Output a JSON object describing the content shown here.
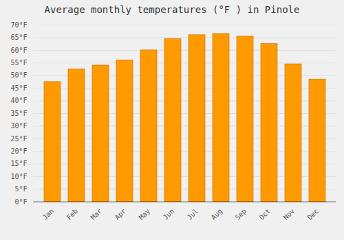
{
  "chart_data": {
    "type": "bar",
    "title": "Average monthly temperatures (°F ) in Pinole",
    "categories": [
      "Jan",
      "Feb",
      "Mar",
      "Apr",
      "May",
      "Jun",
      "Jul",
      "Aug",
      "Sep",
      "Oct",
      "Nov",
      "Dec"
    ],
    "values": [
      47.5,
      52.5,
      54,
      56,
      60,
      64.5,
      66,
      66.5,
      65.5,
      62.5,
      54.5,
      48.5
    ],
    "color": "#FF9900",
    "ylim": [
      0,
      70
    ],
    "yticks": [
      {
        "value": 0,
        "label": "0°F"
      },
      {
        "value": 5,
        "label": "5°F"
      },
      {
        "value": 10,
        "label": "10°F"
      },
      {
        "value": 15,
        "label": "15°F"
      },
      {
        "value": 20,
        "label": "20°F"
      },
      {
        "value": 25,
        "label": "25°F"
      },
      {
        "value": 30,
        "label": "30°F"
      },
      {
        "value": 35,
        "label": "35°F"
      },
      {
        "value": 40,
        "label": "40°F"
      },
      {
        "value": 45,
        "label": "45°F"
      },
      {
        "value": 50,
        "label": "50°F"
      },
      {
        "value": 55,
        "label": "55°F"
      },
      {
        "value": 60,
        "label": "60°F"
      },
      {
        "value": 65,
        "label": "65°F"
      },
      {
        "value": 70,
        "label": "70°F"
      }
    ],
    "grid": true
  }
}
